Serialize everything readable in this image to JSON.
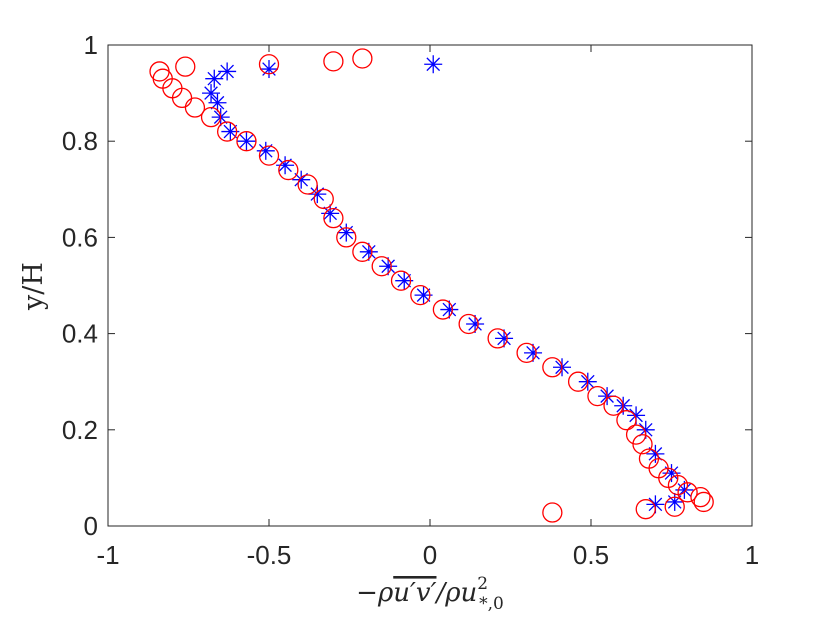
{
  "chart_data": {
    "type": "scatter",
    "title": "",
    "xlabel": "−ρu′v′/ρu*,0²",
    "xlabel_parts": {
      "prefix": "−ρ",
      "overline": "u′v′",
      "middle": "/ρu",
      "sup": "2",
      "sub": "*,0"
    },
    "ylabel": "y/H",
    "xlim": [
      -1,
      1
    ],
    "ylim": [
      0,
      1
    ],
    "xticks": [
      -1,
      -0.5,
      0,
      0.5,
      1
    ],
    "xtick_labels": [
      "-1",
      "-0.5",
      "0",
      "0.5",
      "1"
    ],
    "yticks": [
      0,
      0.2,
      0.4,
      0.6,
      0.8,
      1
    ],
    "ytick_labels": [
      "0",
      "0.2",
      "0.4",
      "0.6",
      "0.8",
      "1"
    ],
    "grid": false,
    "series": [
      {
        "name": "stars",
        "marker": "asterisk",
        "color": "#0000ff",
        "points": [
          [
            0.7,
            0.045
          ],
          [
            0.76,
            0.05
          ],
          [
            0.79,
            0.075
          ],
          [
            0.75,
            0.11
          ],
          [
            0.7,
            0.15
          ],
          [
            0.67,
            0.2
          ],
          [
            0.64,
            0.23
          ],
          [
            0.6,
            0.25
          ],
          [
            0.55,
            0.27
          ],
          [
            0.49,
            0.3
          ],
          [
            0.41,
            0.33
          ],
          [
            0.32,
            0.36
          ],
          [
            0.23,
            0.39
          ],
          [
            0.14,
            0.42
          ],
          [
            0.06,
            0.45
          ],
          [
            -0.02,
            0.48
          ],
          [
            -0.08,
            0.51
          ],
          [
            -0.13,
            0.54
          ],
          [
            -0.19,
            0.57
          ],
          [
            -0.26,
            0.61
          ],
          [
            -0.31,
            0.65
          ],
          [
            -0.35,
            0.69
          ],
          [
            -0.4,
            0.72
          ],
          [
            -0.45,
            0.75
          ],
          [
            -0.51,
            0.78
          ],
          [
            -0.57,
            0.8
          ],
          [
            -0.62,
            0.82
          ],
          [
            -0.65,
            0.85
          ],
          [
            -0.66,
            0.88
          ],
          [
            -0.68,
            0.9
          ],
          [
            -0.67,
            0.93
          ],
          [
            -0.63,
            0.945
          ],
          [
            -0.5,
            0.95
          ],
          [
            0.01,
            0.96
          ]
        ]
      },
      {
        "name": "circles",
        "marker": "circle",
        "color": "#ff0000",
        "points": [
          [
            0.38,
            0.028
          ],
          [
            0.67,
            0.035
          ],
          [
            0.76,
            0.04
          ],
          [
            0.85,
            0.05
          ],
          [
            0.84,
            0.06
          ],
          [
            0.8,
            0.07
          ],
          [
            0.77,
            0.085
          ],
          [
            0.74,
            0.1
          ],
          [
            0.71,
            0.12
          ],
          [
            0.68,
            0.14
          ],
          [
            0.66,
            0.17
          ],
          [
            0.64,
            0.19
          ],
          [
            0.61,
            0.22
          ],
          [
            0.57,
            0.25
          ],
          [
            0.52,
            0.27
          ],
          [
            0.46,
            0.3
          ],
          [
            0.38,
            0.33
          ],
          [
            0.3,
            0.36
          ],
          [
            0.21,
            0.39
          ],
          [
            0.12,
            0.42
          ],
          [
            0.04,
            0.45
          ],
          [
            -0.03,
            0.48
          ],
          [
            -0.09,
            0.51
          ],
          [
            -0.15,
            0.54
          ],
          [
            -0.21,
            0.57
          ],
          [
            -0.26,
            0.6
          ],
          [
            -0.3,
            0.64
          ],
          [
            -0.33,
            0.68
          ],
          [
            -0.38,
            0.71
          ],
          [
            -0.44,
            0.74
          ],
          [
            -0.5,
            0.77
          ],
          [
            -0.57,
            0.8
          ],
          [
            -0.63,
            0.82
          ],
          [
            -0.68,
            0.85
          ],
          [
            -0.73,
            0.87
          ],
          [
            -0.77,
            0.89
          ],
          [
            -0.8,
            0.91
          ],
          [
            -0.83,
            0.93
          ],
          [
            -0.84,
            0.945
          ],
          [
            -0.76,
            0.955
          ],
          [
            -0.5,
            0.96
          ],
          [
            -0.3,
            0.966
          ],
          [
            -0.21,
            0.972
          ]
        ]
      }
    ]
  }
}
